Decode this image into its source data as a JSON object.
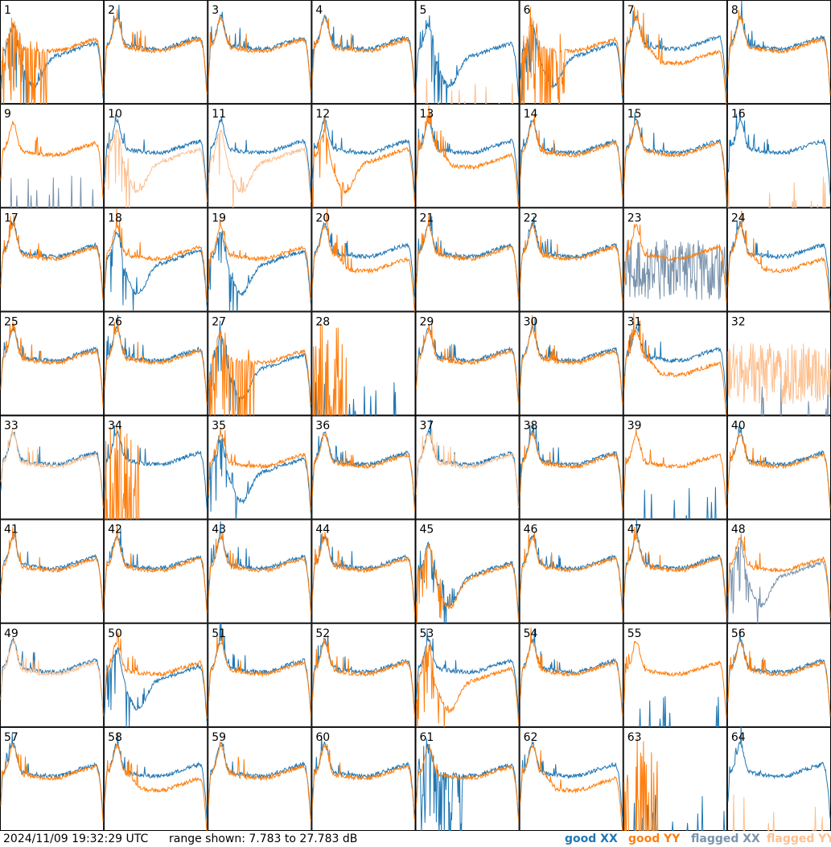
{
  "footer": {
    "timestamp": "2024/11/09 19:32:29 UTC",
    "range_text": "range shown: 7.783 to 27.783 dB",
    "legend": {
      "good_xx": {
        "word": "good",
        "pol": "XX"
      },
      "good_yy": {
        "word": "good",
        "pol": "YY"
      },
      "flagged_xx": {
        "word": "flagged",
        "pol": "XX"
      },
      "flagged_yy": {
        "word": "flagged",
        "pol": "YY"
      }
    }
  },
  "colors": {
    "good_xx": "#1f77b4",
    "good_yy": "#ff7f0e",
    "flagged_xx": "#7a93ad",
    "flagged_yy": "#fdc08f"
  },
  "chart_data": {
    "type": "line",
    "ylim": [
      7.783,
      27.783
    ],
    "yunit": "dB",
    "grid": {
      "rows": 8,
      "cols": 8
    },
    "panels": [
      {
        "label": "1",
        "xx": {
          "flag": false,
          "shape": "dip"
        },
        "yy": {
          "flag": false,
          "shape": "spiky"
        }
      },
      {
        "label": "2",
        "xx": {
          "flag": false,
          "shape": "normal"
        },
        "yy": {
          "flag": false,
          "shape": "normal"
        }
      },
      {
        "label": "3",
        "xx": {
          "flag": false,
          "shape": "normal"
        },
        "yy": {
          "flag": false,
          "shape": "normal"
        }
      },
      {
        "label": "4",
        "xx": {
          "flag": false,
          "shape": "normal"
        },
        "yy": {
          "flag": false,
          "shape": "normal"
        }
      },
      {
        "label": "5",
        "xx": {
          "flag": false,
          "shape": "dip"
        },
        "yy": {
          "flag": true,
          "shape": "dead"
        }
      },
      {
        "label": "6",
        "xx": {
          "flag": false,
          "shape": "dip"
        },
        "yy": {
          "flag": false,
          "shape": "spiky"
        }
      },
      {
        "label": "7",
        "xx": {
          "flag": false,
          "shape": "normal"
        },
        "yy": {
          "flag": false,
          "shape": "low"
        }
      },
      {
        "label": "8",
        "xx": {
          "flag": false,
          "shape": "normal"
        },
        "yy": {
          "flag": false,
          "shape": "normal"
        }
      },
      {
        "label": "9",
        "xx": {
          "flag": true,
          "shape": "dead"
        },
        "yy": {
          "flag": false,
          "shape": "normal"
        }
      },
      {
        "label": "10",
        "xx": {
          "flag": false,
          "shape": "normal"
        },
        "yy": {
          "flag": true,
          "shape": "dip"
        }
      },
      {
        "label": "11",
        "xx": {
          "flag": false,
          "shape": "normal"
        },
        "yy": {
          "flag": true,
          "shape": "dip"
        }
      },
      {
        "label": "12",
        "xx": {
          "flag": false,
          "shape": "normal"
        },
        "yy": {
          "flag": false,
          "shape": "dip"
        }
      },
      {
        "label": "13",
        "xx": {
          "flag": false,
          "shape": "normal"
        },
        "yy": {
          "flag": false,
          "shape": "low"
        }
      },
      {
        "label": "14",
        "xx": {
          "flag": false,
          "shape": "normal"
        },
        "yy": {
          "flag": false,
          "shape": "normal"
        }
      },
      {
        "label": "15",
        "xx": {
          "flag": false,
          "shape": "normal"
        },
        "yy": {
          "flag": false,
          "shape": "normal"
        }
      },
      {
        "label": "16",
        "xx": {
          "flag": false,
          "shape": "normal"
        },
        "yy": {
          "flag": true,
          "shape": "dead"
        }
      },
      {
        "label": "17",
        "xx": {
          "flag": false,
          "shape": "normal"
        },
        "yy": {
          "flag": false,
          "shape": "normal"
        }
      },
      {
        "label": "18",
        "xx": {
          "flag": false,
          "shape": "dip"
        },
        "yy": {
          "flag": false,
          "shape": "normal"
        }
      },
      {
        "label": "19",
        "xx": {
          "flag": false,
          "shape": "dip"
        },
        "yy": {
          "flag": false,
          "shape": "normal"
        }
      },
      {
        "label": "20",
        "xx": {
          "flag": false,
          "shape": "normal"
        },
        "yy": {
          "flag": false,
          "shape": "low"
        }
      },
      {
        "label": "21",
        "xx": {
          "flag": false,
          "shape": "normal"
        },
        "yy": {
          "flag": false,
          "shape": "normal"
        }
      },
      {
        "label": "22",
        "xx": {
          "flag": false,
          "shape": "normal"
        },
        "yy": {
          "flag": false,
          "shape": "normal"
        }
      },
      {
        "label": "23",
        "xx": {
          "flag": true,
          "shape": "noise"
        },
        "yy": {
          "flag": false,
          "shape": "normal"
        }
      },
      {
        "label": "24",
        "xx": {
          "flag": false,
          "shape": "normal"
        },
        "yy": {
          "flag": false,
          "shape": "low"
        }
      },
      {
        "label": "25",
        "xx": {
          "flag": false,
          "shape": "normal"
        },
        "yy": {
          "flag": false,
          "shape": "normal"
        }
      },
      {
        "label": "26",
        "xx": {
          "flag": false,
          "shape": "normal"
        },
        "yy": {
          "flag": false,
          "shape": "normal"
        }
      },
      {
        "label": "27",
        "xx": {
          "flag": false,
          "shape": "dip"
        },
        "yy": {
          "flag": false,
          "shape": "spiky"
        }
      },
      {
        "label": "28",
        "xx": {
          "flag": false,
          "shape": "dead"
        },
        "yy": {
          "flag": false,
          "shape": "spiky-dead"
        }
      },
      {
        "label": "29",
        "xx": {
          "flag": false,
          "shape": "normal"
        },
        "yy": {
          "flag": false,
          "shape": "normal"
        }
      },
      {
        "label": "30",
        "xx": {
          "flag": false,
          "shape": "normal"
        },
        "yy": {
          "flag": false,
          "shape": "normal"
        }
      },
      {
        "label": "31",
        "xx": {
          "flag": false,
          "shape": "normal"
        },
        "yy": {
          "flag": false,
          "shape": "low"
        }
      },
      {
        "label": "32",
        "xx": {
          "flag": true,
          "shape": "dead"
        },
        "yy": {
          "flag": true,
          "shape": "noise"
        }
      },
      {
        "label": "33",
        "xx": {
          "flag": false,
          "shape": "normal"
        },
        "yy": {
          "flag": true,
          "shape": "normal"
        }
      },
      {
        "label": "34",
        "xx": {
          "flag": false,
          "shape": "normal"
        },
        "yy": {
          "flag": false,
          "shape": "spiky-dead"
        }
      },
      {
        "label": "35",
        "xx": {
          "flag": false,
          "shape": "dip"
        },
        "yy": {
          "flag": false,
          "shape": "normal"
        }
      },
      {
        "label": "36",
        "xx": {
          "flag": false,
          "shape": "normal"
        },
        "yy": {
          "flag": false,
          "shape": "normal"
        }
      },
      {
        "label": "37",
        "xx": {
          "flag": false,
          "shape": "normal"
        },
        "yy": {
          "flag": true,
          "shape": "normal"
        }
      },
      {
        "label": "38",
        "xx": {
          "flag": false,
          "shape": "normal"
        },
        "yy": {
          "flag": false,
          "shape": "normal"
        }
      },
      {
        "label": "39",
        "xx": {
          "flag": false,
          "shape": "dead"
        },
        "yy": {
          "flag": false,
          "shape": "normal"
        }
      },
      {
        "label": "40",
        "xx": {
          "flag": false,
          "shape": "normal"
        },
        "yy": {
          "flag": false,
          "shape": "normal"
        }
      },
      {
        "label": "41",
        "xx": {
          "flag": false,
          "shape": "normal"
        },
        "yy": {
          "flag": false,
          "shape": "normal"
        }
      },
      {
        "label": "42",
        "xx": {
          "flag": false,
          "shape": "normal"
        },
        "yy": {
          "flag": false,
          "shape": "normal"
        }
      },
      {
        "label": "43",
        "xx": {
          "flag": false,
          "shape": "normal"
        },
        "yy": {
          "flag": false,
          "shape": "normal"
        }
      },
      {
        "label": "44",
        "xx": {
          "flag": false,
          "shape": "normal"
        },
        "yy": {
          "flag": false,
          "shape": "normal"
        }
      },
      {
        "label": "45",
        "xx": {
          "flag": false,
          "shape": "dip"
        },
        "yy": {
          "flag": false,
          "shape": "dip"
        }
      },
      {
        "label": "46",
        "xx": {
          "flag": false,
          "shape": "normal"
        },
        "yy": {
          "flag": false,
          "shape": "normal"
        }
      },
      {
        "label": "47",
        "xx": {
          "flag": false,
          "shape": "normal"
        },
        "yy": {
          "flag": false,
          "shape": "normal"
        }
      },
      {
        "label": "48",
        "xx": {
          "flag": true,
          "shape": "dip"
        },
        "yy": {
          "flag": false,
          "shape": "normal"
        }
      },
      {
        "label": "49",
        "xx": {
          "flag": false,
          "shape": "normal"
        },
        "yy": {
          "flag": true,
          "shape": "normal"
        }
      },
      {
        "label": "50",
        "xx": {
          "flag": false,
          "shape": "dip"
        },
        "yy": {
          "flag": false,
          "shape": "normal"
        }
      },
      {
        "label": "51",
        "xx": {
          "flag": false,
          "shape": "normal"
        },
        "yy": {
          "flag": false,
          "shape": "normal"
        }
      },
      {
        "label": "52",
        "xx": {
          "flag": false,
          "shape": "normal"
        },
        "yy": {
          "flag": false,
          "shape": "normal"
        }
      },
      {
        "label": "53",
        "xx": {
          "flag": false,
          "shape": "normal"
        },
        "yy": {
          "flag": false,
          "shape": "dip"
        }
      },
      {
        "label": "54",
        "xx": {
          "flag": false,
          "shape": "normal"
        },
        "yy": {
          "flag": false,
          "shape": "normal"
        }
      },
      {
        "label": "55",
        "xx": {
          "flag": false,
          "shape": "dead"
        },
        "yy": {
          "flag": false,
          "shape": "normal"
        }
      },
      {
        "label": "56",
        "xx": {
          "flag": false,
          "shape": "normal"
        },
        "yy": {
          "flag": false,
          "shape": "normal"
        }
      },
      {
        "label": "57",
        "xx": {
          "flag": false,
          "shape": "normal"
        },
        "yy": {
          "flag": false,
          "shape": "normal"
        }
      },
      {
        "label": "58",
        "xx": {
          "flag": false,
          "shape": "normal"
        },
        "yy": {
          "flag": false,
          "shape": "low"
        }
      },
      {
        "label": "59",
        "xx": {
          "flag": false,
          "shape": "normal"
        },
        "yy": {
          "flag": false,
          "shape": "normal"
        }
      },
      {
        "label": "60",
        "xx": {
          "flag": false,
          "shape": "normal"
        },
        "yy": {
          "flag": false,
          "shape": "normal"
        }
      },
      {
        "label": "61",
        "xx": {
          "flag": false,
          "shape": "spiky"
        },
        "yy": {
          "flag": false,
          "shape": "normal"
        }
      },
      {
        "label": "62",
        "xx": {
          "flag": false,
          "shape": "normal"
        },
        "yy": {
          "flag": false,
          "shape": "low"
        }
      },
      {
        "label": "63",
        "xx": {
          "flag": false,
          "shape": "dead"
        },
        "yy": {
          "flag": false,
          "shape": "spiky-dead"
        }
      },
      {
        "label": "64",
        "xx": {
          "flag": false,
          "shape": "normal"
        },
        "yy": {
          "flag": true,
          "shape": "dead"
        }
      }
    ]
  }
}
